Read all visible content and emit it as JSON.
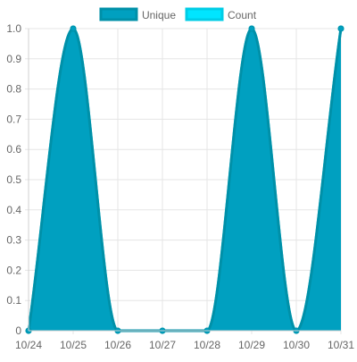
{
  "chart_data": {
    "type": "area",
    "legend_position": "top",
    "grid": true,
    "x": [
      "10/24",
      "10/25",
      "10/26",
      "10/27",
      "10/28",
      "10/29",
      "10/30",
      "10/31"
    ],
    "ylim": [
      0,
      1.0
    ],
    "yticks": [
      "0",
      "0.1",
      "0.2",
      "0.3",
      "0.4",
      "0.5",
      "0.6",
      "0.7",
      "0.8",
      "0.9",
      "1.0"
    ],
    "series": [
      {
        "name": "Unique",
        "values": [
          0,
          1,
          0,
          0,
          0,
          1,
          0,
          1
        ],
        "fill_color": "#00a0c0",
        "line_color": "#0090a8"
      },
      {
        "name": "Count",
        "values": [
          0,
          1,
          0,
          0,
          0,
          1,
          0,
          1
        ],
        "fill_color": "#00e5ff",
        "line_color": "#00cde6"
      }
    ]
  }
}
